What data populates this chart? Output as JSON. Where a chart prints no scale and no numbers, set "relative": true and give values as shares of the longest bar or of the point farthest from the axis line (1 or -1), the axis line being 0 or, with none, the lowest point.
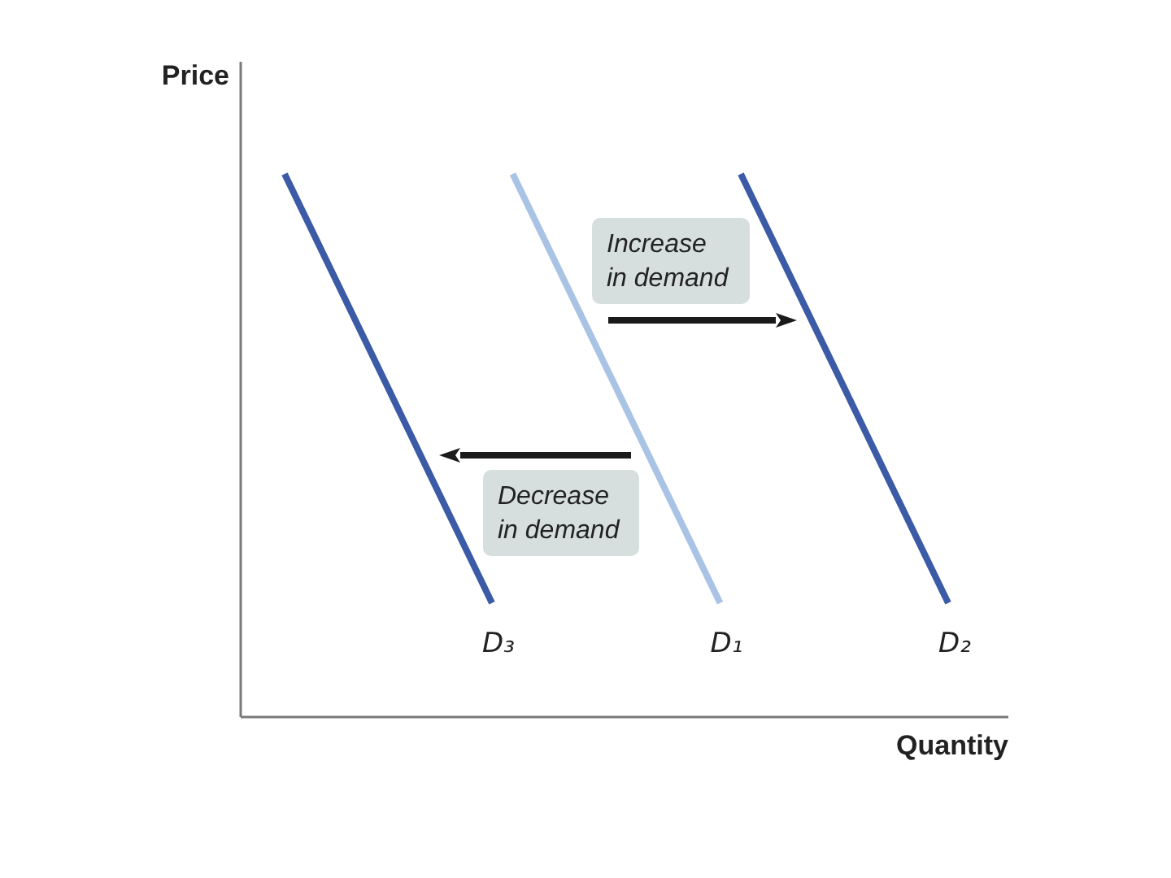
{
  "chart_data": {
    "type": "line",
    "relative": true,
    "xlabel": "Quantity",
    "ylabel": "Price",
    "categories": [
      null,
      null,
      null,
      null,
      null,
      null,
      null,
      null,
      null,
      null,
      null,
      null,
      null,
      null,
      null,
      null,
      null,
      null,
      null,
      null,
      null,
      null,
      null,
      null,
      null,
      null,
      null,
      null,
      null,
      null,
      null,
      null,
      null
    ],
    "series": [
      {
        "name": "D₁",
        "color": "#a9c3e5",
        "values": [
          null,
          null,
          null,
          null,
          null,
          null,
          null,
          null,
          null,
          null,
          null,
          1,
          0.921,
          0.842,
          0.763,
          0.684,
          0.605,
          0.526,
          0.447,
          0.368,
          0.289,
          0.21,
          null,
          null,
          null,
          null,
          null,
          null,
          null,
          null,
          null,
          null,
          null
        ]
      },
      {
        "name": "D₂",
        "color": "#3b5ba7",
        "values": [
          null,
          null,
          null,
          null,
          null,
          null,
          null,
          null,
          null,
          null,
          null,
          null,
          null,
          null,
          null,
          null,
          null,
          null,
          null,
          null,
          null,
          null,
          1,
          0.921,
          0.842,
          0.763,
          0.684,
          0.605,
          0.526,
          0.447,
          0.368,
          0.289,
          0.21
        ]
      },
      {
        "name": "D₃",
        "color": "#3b5ba7",
        "values": [
          1,
          0.921,
          0.842,
          0.763,
          0.684,
          0.605,
          0.526,
          0.447,
          0.368,
          0.289,
          0.21,
          null,
          null,
          null,
          null,
          null,
          null,
          null,
          null,
          null,
          null,
          null,
          null,
          null,
          null,
          null,
          null,
          null,
          null,
          null,
          null,
          null,
          null
        ]
      }
    ],
    "annotations": [
      "Increase in demand",
      "Decrease in demand"
    ]
  }
}
